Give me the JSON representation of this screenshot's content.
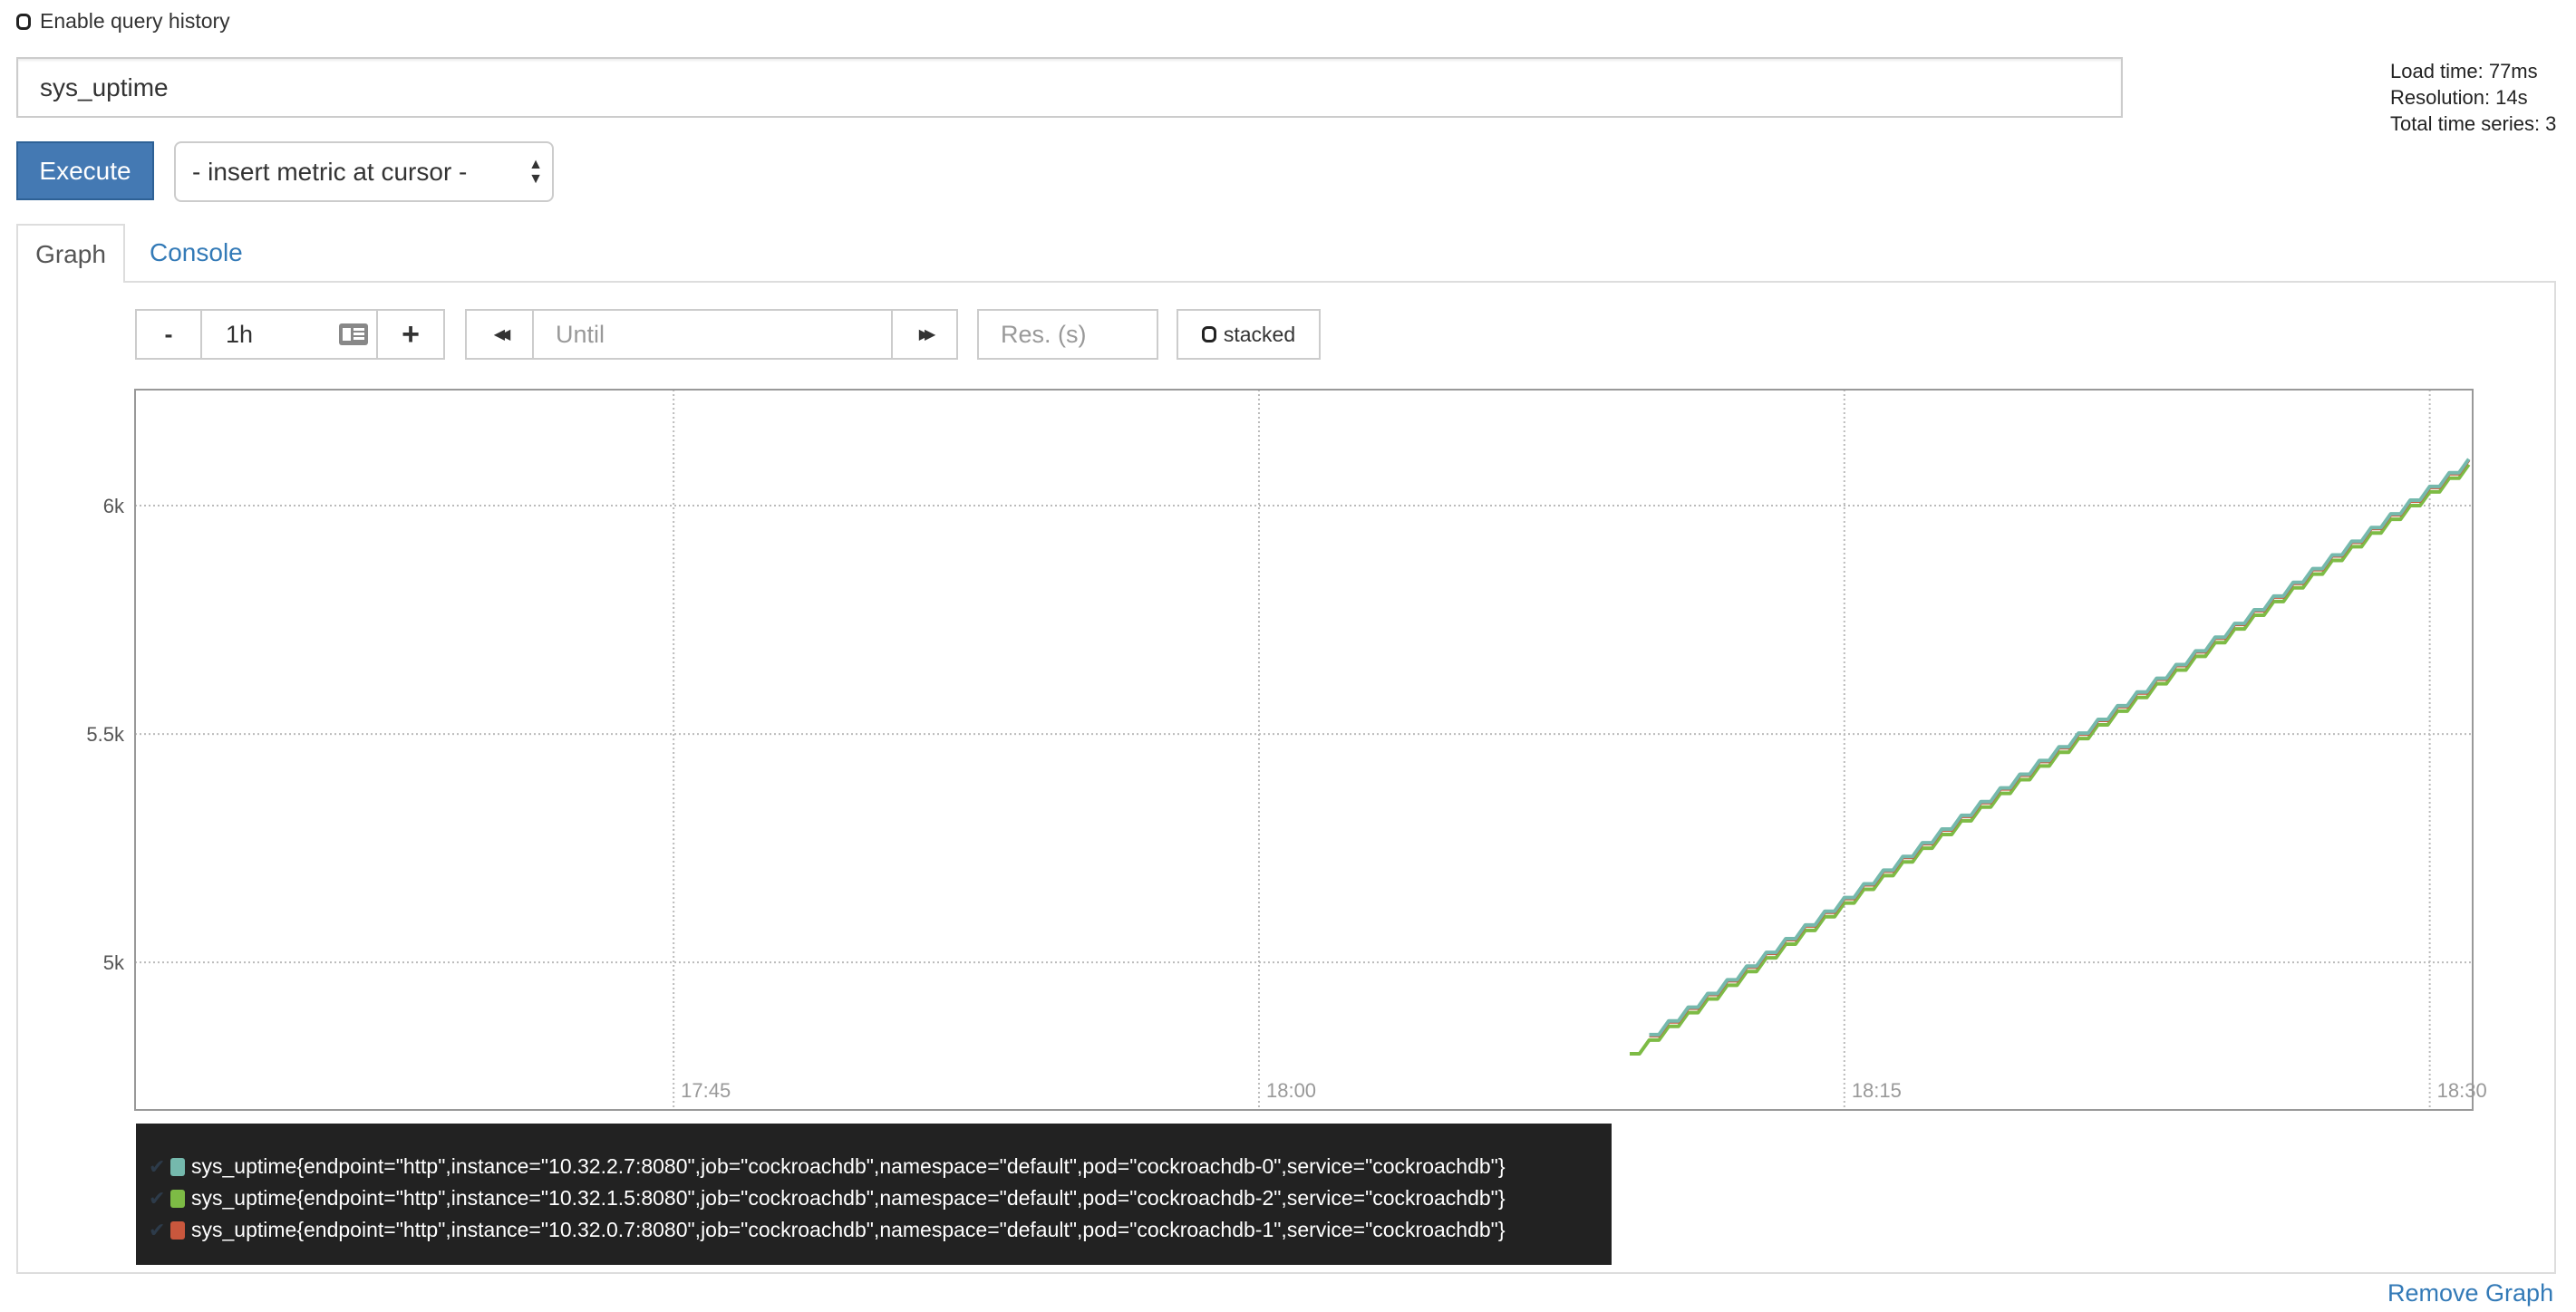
{
  "query_history": {
    "label": "Enable query history",
    "checked": false
  },
  "expression": {
    "value": "sys_uptime"
  },
  "stats": {
    "load_time": "Load time: 77ms",
    "resolution": "Resolution: 14s",
    "total_series": "Total time series: 3"
  },
  "execute_label": "Execute",
  "metric_select": {
    "selected": "- insert metric at cursor -"
  },
  "tabs": [
    {
      "label": "Graph",
      "active": true
    },
    {
      "label": "Console",
      "active": false
    }
  ],
  "controls": {
    "minus": "-",
    "range": "1h",
    "plus": "+",
    "back": "◀◀",
    "until_placeholder": "Until",
    "forward": "▶▶",
    "res_placeholder": "Res. (s)",
    "stacked_label": "stacked"
  },
  "remove_graph": "Remove Graph",
  "chart_data": {
    "type": "line",
    "interpolation": "step",
    "grid": true,
    "ylim": [
      4677,
      6254
    ],
    "xlim": [
      "17:31:12",
      "18:31:06"
    ],
    "y_ticks": [
      "5k",
      "5.5k",
      "6k"
    ],
    "y_tick_values": [
      5000,
      5500,
      6000
    ],
    "x_ticks": [
      "17:45",
      "18:00",
      "18:15",
      "18:30"
    ],
    "x": [
      "18:09:30",
      "18:10:00",
      "18:10:30",
      "18:11:00",
      "18:11:30",
      "18:12:00",
      "18:12:30",
      "18:13:00",
      "18:13:30",
      "18:14:00",
      "18:14:30",
      "18:15:00",
      "18:15:30",
      "18:16:00",
      "18:16:30",
      "18:17:00",
      "18:17:30",
      "18:18:00",
      "18:18:30",
      "18:19:00",
      "18:19:30",
      "18:20:00",
      "18:20:30",
      "18:21:00",
      "18:21:30",
      "18:22:00",
      "18:22:30",
      "18:23:00",
      "18:23:30",
      "18:24:00",
      "18:24:30",
      "18:25:00",
      "18:25:30",
      "18:26:00",
      "18:26:30",
      "18:27:00",
      "18:27:30",
      "18:28:00",
      "18:28:30",
      "18:29:00",
      "18:29:30",
      "18:30:00",
      "18:30:30",
      "18:31:00"
    ],
    "series": [
      {
        "name": "sys_uptime{endpoint=\"http\",instance=\"10.32.2.7:8080\",job=\"cockroachdb\",namespace=\"default\",pod=\"cockroachdb-0\",service=\"cockroachdb\"}",
        "color": "#75b9ad",
        "values": [
          null,
          4842,
          4872,
          4902,
          4932,
          4962,
          4992,
          5022,
          5052,
          5082,
          5112,
          5142,
          5172,
          5202,
          5232,
          5262,
          5292,
          5322,
          5352,
          5382,
          5412,
          5442,
          5472,
          5502,
          5532,
          5562,
          5592,
          5622,
          5652,
          5682,
          5712,
          5742,
          5772,
          5802,
          5832,
          5862,
          5892,
          5922,
          5952,
          5982,
          6012,
          6042,
          6072,
          6102
        ]
      },
      {
        "name": "sys_uptime{endpoint=\"http\",instance=\"10.32.1.5:8080\",job=\"cockroachdb\",namespace=\"default\",pod=\"cockroachdb-2\",service=\"cockroachdb\"}",
        "color": "#7dbb45",
        "values": [
          4800,
          4830,
          4860,
          4890,
          4920,
          4950,
          4980,
          5010,
          5040,
          5070,
          5100,
          5130,
          5160,
          5190,
          5220,
          5250,
          5280,
          5310,
          5340,
          5370,
          5400,
          5430,
          5460,
          5490,
          5520,
          5550,
          5580,
          5610,
          5640,
          5670,
          5700,
          5730,
          5760,
          5790,
          5820,
          5850,
          5880,
          5910,
          5940,
          5970,
          6000,
          6030,
          6060,
          6090
        ]
      },
      {
        "name": "sys_uptime{endpoint=\"http\",instance=\"10.32.0.7:8080\",job=\"cockroachdb\",namespace=\"default\",pod=\"cockroachdb-1\",service=\"cockroachdb\"}",
        "color": "#c9573d",
        "values": [
          null,
          4840,
          4870,
          4900,
          4930,
          4960,
          4990,
          5020,
          5050,
          5080,
          5110,
          5140,
          5170,
          5200,
          5230,
          5260,
          5290,
          5320,
          5350,
          5380,
          5410,
          5440,
          5470,
          5500,
          5530,
          5560,
          5590,
          5620,
          5650,
          5680,
          5710,
          5740,
          5770,
          5800,
          5830,
          5860,
          5890,
          5920,
          5950,
          5980,
          6010,
          6040,
          6070,
          6100
        ]
      }
    ]
  }
}
